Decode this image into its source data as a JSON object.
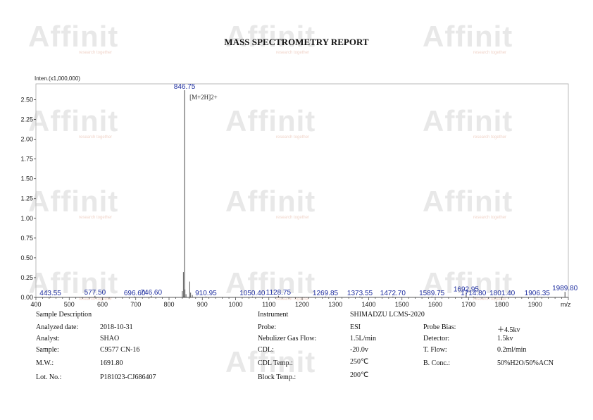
{
  "report": {
    "title": "MASS SPECTROMETRY REPORT",
    "watermark": "Affinit",
    "watermark_sub": "research together"
  },
  "chart_data": {
    "type": "bar",
    "ylabel": "Inten.(x1,000,000)",
    "xlabel": "m/z",
    "xlim": [
      400,
      2000
    ],
    "ylim": [
      0,
      2.7
    ],
    "x_ticks": [
      400,
      500,
      600,
      700,
      800,
      900,
      1000,
      1100,
      1200,
      1300,
      1400,
      1500,
      1600,
      1700,
      1800,
      1900
    ],
    "y_ticks": [
      "0.00",
      "0.25",
      "0.50",
      "0.75",
      "1.00",
      "1.25",
      "1.50",
      "1.75",
      "2.00",
      "2.25",
      "2.50"
    ],
    "peaks": [
      {
        "mz": 443.55,
        "label": "443.55",
        "intensity": 0.01
      },
      {
        "mz": 577.5,
        "label": "577.50",
        "intensity": 0.02
      },
      {
        "mz": 696.6,
        "label": "696.60",
        "intensity": 0.01
      },
      {
        "mz": 746.6,
        "label": "746.60",
        "intensity": 0.02
      },
      {
        "mz": 846.75,
        "label": "846.75",
        "intensity": 2.62
      },
      {
        "mz": 910.95,
        "label": "910.95",
        "intensity": 0.01
      },
      {
        "mz": 1050.4,
        "label": "1050.40",
        "intensity": 0.01
      },
      {
        "mz": 1128.75,
        "label": "1128.75",
        "intensity": 0.02
      },
      {
        "mz": 1269.85,
        "label": "1269.85",
        "intensity": 0.01
      },
      {
        "mz": 1373.55,
        "label": "1373.55",
        "intensity": 0.01
      },
      {
        "mz": 1472.7,
        "label": "1472.70",
        "intensity": 0.01
      },
      {
        "mz": 1589.75,
        "label": "1589.75",
        "intensity": 0.01
      },
      {
        "mz": 1692.95,
        "label": "1692.95",
        "intensity": 0.06
      },
      {
        "mz": 1714.8,
        "label": "1714.80",
        "intensity": 0.01
      },
      {
        "mz": 1801.4,
        "label": "1801.40",
        "intensity": 0.01
      },
      {
        "mz": 1906.35,
        "label": "1906.35",
        "intensity": 0.01
      },
      {
        "mz": 1989.8,
        "label": "1989.80",
        "intensity": 0.07
      }
    ],
    "minor_peaks": [
      {
        "mz": 840,
        "intensity": 0.08
      },
      {
        "mz": 843,
        "intensity": 0.32
      },
      {
        "mz": 848,
        "intensity": 0.1
      },
      {
        "mz": 851,
        "intensity": 0.04
      },
      {
        "mz": 862,
        "intensity": 0.2
      },
      {
        "mz": 865,
        "intensity": 0.06
      },
      {
        "mz": 870,
        "intensity": 0.03
      }
    ],
    "annotations": [
      {
        "mz": 846.75,
        "text": "[M+2H]2+"
      }
    ]
  },
  "info": {
    "sample_description_label": "Sample Description",
    "instrument_label": "Instrument",
    "instrument_value": "SHIMADZU LCMS-2020",
    "rows_left": [
      {
        "label": "Analyzed date:",
        "value": "2018-10-31"
      },
      {
        "label": "Analyst:",
        "value": "SHAO"
      },
      {
        "label": "Sample:",
        "value": "C9577 CN-16"
      },
      {
        "label": "M.W.:",
        "value": "1691.80"
      },
      {
        "label": "Lot. No.:",
        "value": "P181023-CJ686407"
      }
    ],
    "rows_mid": [
      {
        "label": "Probe:",
        "value": "ESI"
      },
      {
        "label": "Nebulizer Gas Flow:",
        "value": "1.5L/min"
      },
      {
        "label": "CDL:",
        "value": "-20.0v"
      },
      {
        "label": "CDL Temp.:",
        "value": "250℃"
      },
      {
        "label": "Block Temp.:",
        "value": "200℃"
      }
    ],
    "rows_right": [
      {
        "label": "Probe Bias:",
        "value": "＋4.5kv"
      },
      {
        "label": "Detector:",
        "value": "1.5kv"
      },
      {
        "label": "T. Flow:",
        "value": "0.2ml/min"
      },
      {
        "label": "B. Conc.:",
        "value": "50%H2O/50%ACN"
      }
    ]
  }
}
